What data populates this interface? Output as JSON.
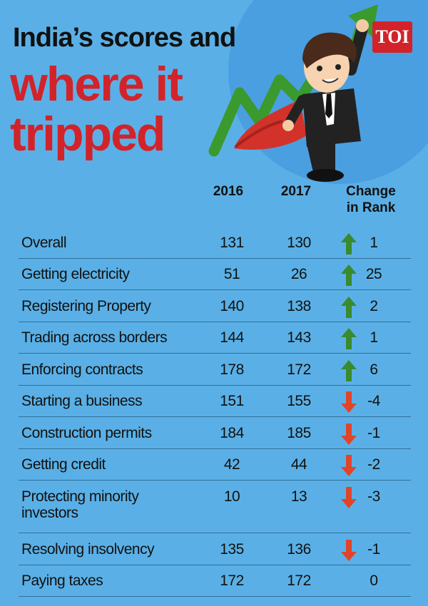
{
  "title": {
    "line1": "India’s scores and",
    "line2": "where it",
    "line3": "tripped"
  },
  "badge": "TOI",
  "colors": {
    "background": "#5ab0e6",
    "title_red": "#d2232a",
    "up_arrow": "#3a8a2e",
    "down_arrow": "#e0452a",
    "divider": "#2f6f99"
  },
  "illustration": {
    "description_icon": "businessman-superhero-icon",
    "trend_arrow_icon": "rising-trend-arrow-icon"
  },
  "chart_data": {
    "type": "table",
    "columns": [
      "2016",
      "2017",
      "Change in Rank"
    ],
    "column_header_change_line1": "Change",
    "column_header_change_line2": "in Rank",
    "rows": [
      {
        "label": "Overall",
        "y2016": "131",
        "y2017": "130",
        "direction": "up",
        "change": "1"
      },
      {
        "label": "Getting electricity",
        "y2016": "51",
        "y2017": "26",
        "direction": "up",
        "change": "25"
      },
      {
        "label": "Registering Property",
        "y2016": "140",
        "y2017": "138",
        "direction": "up",
        "change": "2"
      },
      {
        "label": "Trading across borders",
        "y2016": "144",
        "y2017": "143",
        "direction": "up",
        "change": "1"
      },
      {
        "label": "Enforcing contracts",
        "y2016": "178",
        "y2017": "172",
        "direction": "up",
        "change": "6"
      },
      {
        "label": "Starting a business",
        "y2016": "151",
        "y2017": "155",
        "direction": "down",
        "change": "-4"
      },
      {
        "label": "Construction permits",
        "y2016": "184",
        "y2017": "185",
        "direction": "down",
        "change": "-1"
      },
      {
        "label": "Getting credit",
        "y2016": "42",
        "y2017": "44",
        "direction": "down",
        "change": "-2"
      },
      {
        "label": "Protecting minority investors",
        "label_line1": "Protecting minority",
        "label_line2": "investors",
        "y2016": "10",
        "y2017": "13",
        "direction": "down",
        "change": "-3"
      },
      {
        "label": "Resolving insolvency",
        "y2016": "135",
        "y2017": "136",
        "direction": "down",
        "change": "-1"
      },
      {
        "label": "Paying taxes",
        "y2016": "172",
        "y2017": "172",
        "direction": "none",
        "change": "0"
      }
    ]
  }
}
